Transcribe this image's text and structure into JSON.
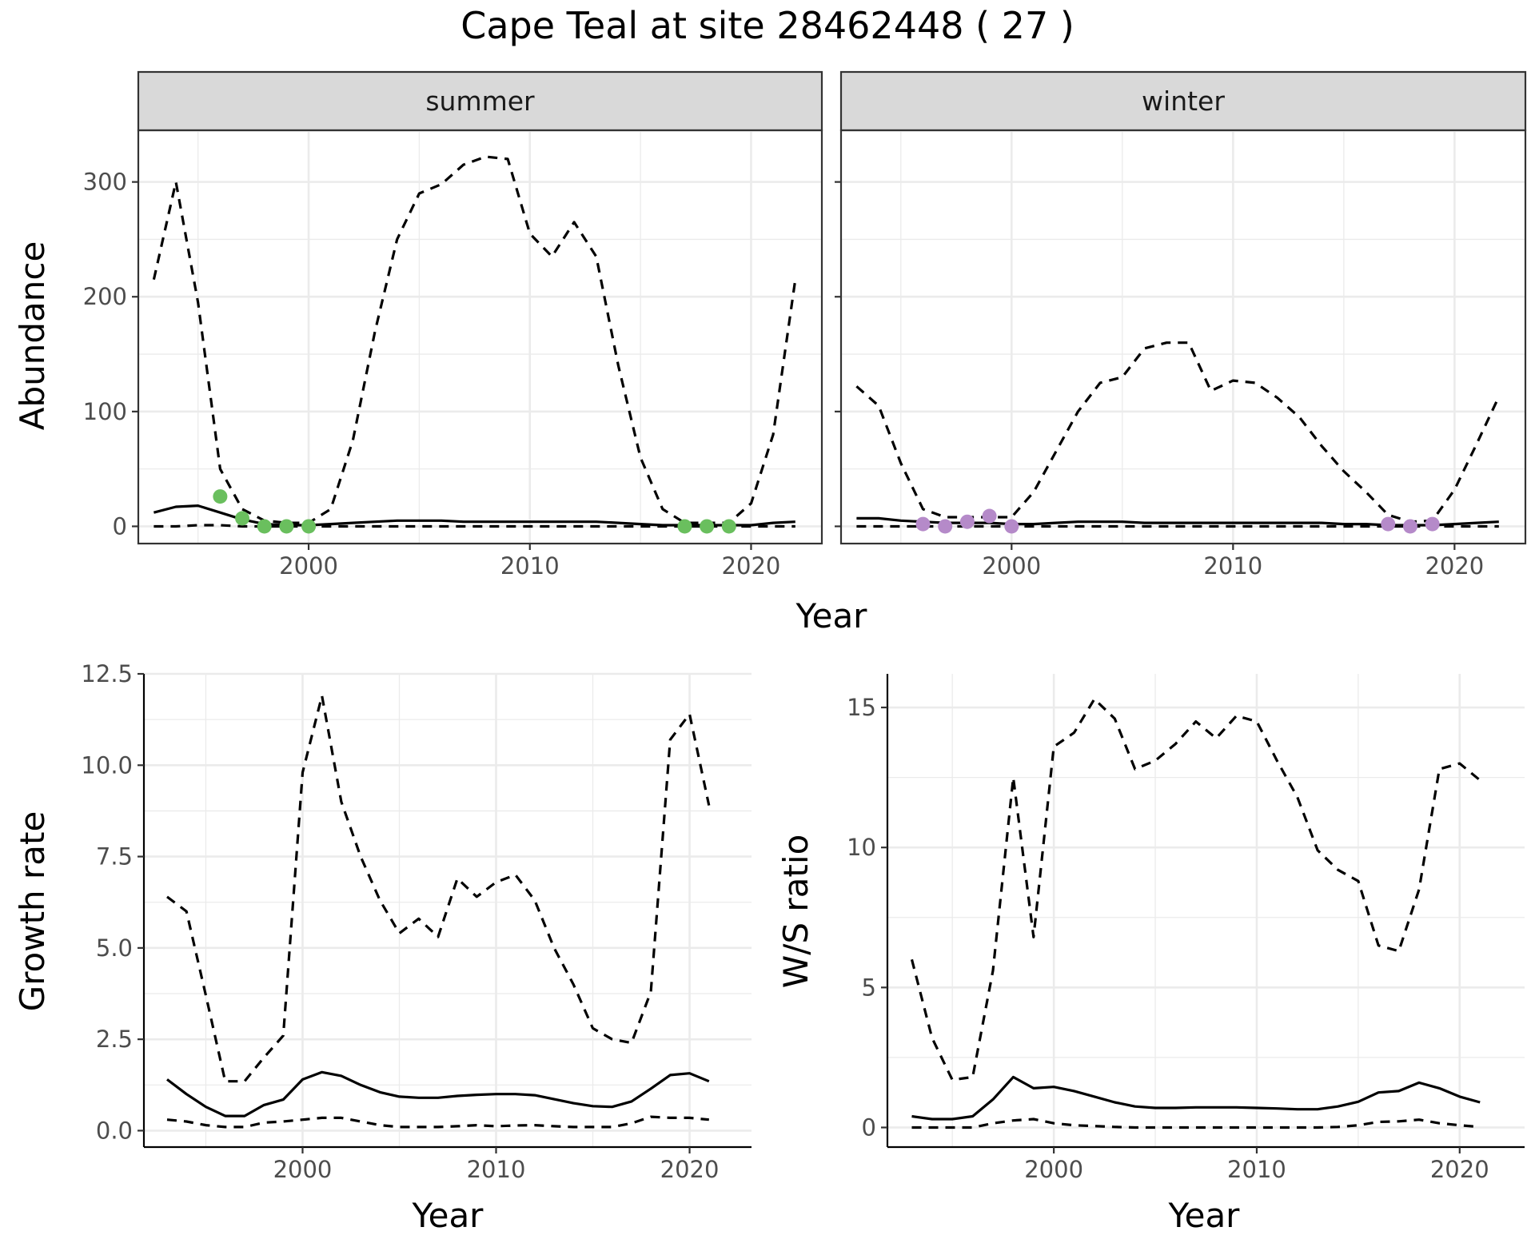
{
  "title": "Cape Teal at site 28462448 ( 27 )",
  "colors": {
    "summer_points": "#6abf5e",
    "winter_points": "#b58ac9",
    "lines": "#000000",
    "strip": "#d9d9d9"
  },
  "chart_data": [
    {
      "id": "abundance",
      "type": "line",
      "xlabel": "Year",
      "ylabel": "Abundance",
      "xlim": [
        1992.3,
        2023.2
      ],
      "ylim": [
        -15,
        345
      ],
      "x_ticks": [
        2000,
        2010,
        2020
      ],
      "y_ticks": [
        0,
        100,
        200,
        300
      ],
      "facets": [
        {
          "label": "summer",
          "point_color": "#6abf5e",
          "estimate": {
            "x": [
              1993,
              1994,
              1995,
              1996,
              1997,
              1998,
              1999,
              2000,
              2001,
              2002,
              2003,
              2004,
              2005,
              2006,
              2007,
              2008,
              2009,
              2010,
              2011,
              2012,
              2013,
              2014,
              2015,
              2016,
              2017,
              2018,
              2019,
              2020,
              2021,
              2022
            ],
            "y": [
              12,
              17,
              18,
              12,
              6,
              2,
              1,
              1,
              2,
              3,
              4,
              5,
              5,
              5,
              4,
              4,
              4,
              4,
              4,
              4,
              4,
              3,
              2,
              1,
              1,
              1,
              1,
              1,
              3,
              4
            ]
          },
          "upper": {
            "x": [
              1993,
              1994,
              1995,
              1996,
              1997,
              1998,
              1999,
              2000,
              2001,
              2002,
              2003,
              2004,
              2005,
              2006,
              2007,
              2008,
              2009,
              2010,
              2011,
              2012,
              2013,
              2014,
              2015,
              2016,
              2017,
              2018,
              2019,
              2020,
              2021,
              2022
            ],
            "y": [
              215,
              300,
              195,
              50,
              15,
              5,
              3,
              3,
              15,
              75,
              170,
              250,
              290,
              298,
              315,
              322,
              320,
              255,
              235,
              265,
              235,
              140,
              60,
              15,
              3,
              3,
              3,
              20,
              80,
              215
            ]
          },
          "lower": {
            "x": [
              1993,
              1994,
              1995,
              1996,
              1997,
              1998,
              1999,
              2000,
              2001,
              2002,
              2003,
              2004,
              2005,
              2006,
              2007,
              2008,
              2009,
              2010,
              2011,
              2012,
              2013,
              2014,
              2015,
              2016,
              2017,
              2018,
              2019,
              2020,
              2021,
              2022
            ],
            "y": [
              0,
              0,
              1,
              1,
              0,
              0,
              0,
              0,
              0,
              0,
              0,
              0,
              0,
              0,
              0,
              0,
              0,
              0,
              0,
              0,
              0,
              0,
              0,
              0,
              0,
              0,
              0,
              0,
              0,
              0
            ]
          },
          "points": {
            "x": [
              1996,
              1997,
              1998,
              1999,
              2000,
              2017,
              2018,
              2019
            ],
            "y": [
              26,
              7,
              0,
              0,
              0,
              0,
              0,
              0
            ]
          }
        },
        {
          "label": "winter",
          "point_color": "#b58ac9",
          "estimate": {
            "x": [
              1993,
              1994,
              1995,
              1996,
              1997,
              1998,
              1999,
              2000,
              2001,
              2002,
              2003,
              2004,
              2005,
              2006,
              2007,
              2008,
              2009,
              2010,
              2011,
              2012,
              2013,
              2014,
              2015,
              2016,
              2017,
              2018,
              2019,
              2020,
              2021,
              2022
            ],
            "y": [
              7,
              7,
              5,
              4,
              3,
              3,
              3,
              2,
              2,
              3,
              4,
              4,
              4,
              3,
              3,
              3,
              3,
              3,
              3,
              3,
              3,
              3,
              2,
              2,
              1,
              1,
              1,
              2,
              3,
              4
            ]
          },
          "upper": {
            "x": [
              1993,
              1994,
              1995,
              1996,
              1997,
              1998,
              1999,
              2000,
              2001,
              2002,
              2003,
              2004,
              2005,
              2006,
              2007,
              2008,
              2009,
              2010,
              2011,
              2012,
              2013,
              2014,
              2015,
              2016,
              2017,
              2018,
              2019,
              2020,
              2021,
              2022
            ],
            "y": [
              122,
              105,
              55,
              15,
              8,
              8,
              8,
              8,
              30,
              65,
              100,
              125,
              130,
              155,
              160,
              160,
              118,
              127,
              125,
              112,
              95,
              70,
              48,
              30,
              10,
              4,
              5,
              32,
              72,
              113
            ]
          },
          "lower": {
            "x": [
              1993,
              1994,
              1995,
              1996,
              1997,
              1998,
              1999,
              2000,
              2001,
              2002,
              2003,
              2004,
              2005,
              2006,
              2007,
              2008,
              2009,
              2010,
              2011,
              2012,
              2013,
              2014,
              2015,
              2016,
              2017,
              2018,
              2019,
              2020,
              2021,
              2022
            ],
            "y": [
              0,
              0,
              0,
              0,
              0,
              0,
              0,
              0,
              0,
              0,
              0,
              0,
              0,
              0,
              0,
              0,
              0,
              0,
              0,
              0,
              0,
              0,
              0,
              0,
              0,
              0,
              0,
              0,
              0,
              0
            ]
          },
          "points": {
            "x": [
              1996,
              1997,
              1998,
              1999,
              2000,
              2017,
              2018,
              2019
            ],
            "y": [
              2,
              0,
              4,
              9,
              0,
              2,
              0,
              2
            ]
          }
        }
      ]
    },
    {
      "id": "growth",
      "type": "line",
      "xlabel": "Year",
      "ylabel": "Growth rate",
      "xlim": [
        1991.8,
        2023.2
      ],
      "ylim": [
        -0.45,
        12.5
      ],
      "x_ticks": [
        2000,
        2010,
        2020
      ],
      "y_ticks": [
        0.0,
        2.5,
        5.0,
        7.5,
        10.0,
        12.5
      ],
      "y_tick_labels": [
        "0.0",
        "2.5",
        "5.0",
        "7.5",
        "10.0",
        "12.5"
      ],
      "estimate": {
        "x": [
          1993,
          1994,
          1995,
          1996,
          1997,
          1998,
          1999,
          2000,
          2001,
          2002,
          2003,
          2004,
          2005,
          2006,
          2007,
          2008,
          2009,
          2010,
          2011,
          2012,
          2013,
          2014,
          2015,
          2016,
          2017,
          2018,
          2019,
          2020,
          2021
        ],
        "y": [
          1.4,
          1.0,
          0.65,
          0.4,
          0.4,
          0.7,
          0.85,
          1.4,
          1.6,
          1.5,
          1.25,
          1.05,
          0.93,
          0.9,
          0.9,
          0.95,
          0.98,
          1.0,
          1.0,
          0.97,
          0.86,
          0.75,
          0.67,
          0.65,
          0.8,
          1.15,
          1.52,
          1.57,
          1.35
        ]
      },
      "upper": {
        "x": [
          1993,
          1994,
          1995,
          1996,
          1997,
          1998,
          1999,
          2000,
          2001,
          2002,
          2003,
          2004,
          2005,
          2006,
          2007,
          2008,
          2009,
          2010,
          2011,
          2012,
          2013,
          2014,
          2015,
          2016,
          2017,
          2018,
          2019,
          2020,
          2021
        ],
        "y": [
          6.4,
          6.0,
          3.7,
          1.35,
          1.35,
          2.0,
          2.6,
          9.8,
          11.9,
          9.0,
          7.5,
          6.3,
          5.4,
          5.8,
          5.3,
          6.9,
          6.4,
          6.8,
          7.0,
          6.3,
          5.0,
          4.0,
          2.8,
          2.5,
          2.4,
          3.8,
          10.7,
          11.4,
          8.9
        ]
      },
      "lower": {
        "x": [
          1993,
          1994,
          1995,
          1996,
          1997,
          1998,
          1999,
          2000,
          2001,
          2002,
          2003,
          2004,
          2005,
          2006,
          2007,
          2008,
          2009,
          2010,
          2011,
          2012,
          2013,
          2014,
          2015,
          2016,
          2017,
          2018,
          2019,
          2020,
          2021
        ],
        "y": [
          0.3,
          0.25,
          0.15,
          0.1,
          0.1,
          0.22,
          0.25,
          0.3,
          0.35,
          0.35,
          0.25,
          0.15,
          0.1,
          0.1,
          0.1,
          0.12,
          0.15,
          0.12,
          0.14,
          0.15,
          0.12,
          0.1,
          0.1,
          0.1,
          0.2,
          0.38,
          0.35,
          0.35,
          0.3
        ]
      }
    },
    {
      "id": "ratio",
      "type": "line",
      "xlabel": "Year",
      "ylabel": "W/S ratio",
      "xlim": [
        1991.8,
        2023.2
      ],
      "ylim": [
        -0.7,
        16.2
      ],
      "x_ticks": [
        2000,
        2010,
        2020
      ],
      "y_ticks": [
        0,
        5,
        10,
        15
      ],
      "estimate": {
        "x": [
          1993,
          1994,
          1995,
          1996,
          1997,
          1998,
          1999,
          2000,
          2001,
          2002,
          2003,
          2004,
          2005,
          2006,
          2007,
          2008,
          2009,
          2010,
          2011,
          2012,
          2013,
          2014,
          2015,
          2016,
          2017,
          2018,
          2019,
          2020,
          2021
        ],
        "y": [
          0.4,
          0.3,
          0.3,
          0.4,
          1.0,
          1.8,
          1.4,
          1.45,
          1.3,
          1.1,
          0.9,
          0.75,
          0.7,
          0.7,
          0.72,
          0.72,
          0.72,
          0.7,
          0.68,
          0.65,
          0.65,
          0.75,
          0.92,
          1.25,
          1.3,
          1.6,
          1.4,
          1.1,
          0.9
        ]
      },
      "upper": {
        "x": [
          1993,
          1994,
          1995,
          1996,
          1997,
          1998,
          1999,
          2000,
          2001,
          2002,
          2003,
          2004,
          2005,
          2006,
          2007,
          2008,
          2009,
          2010,
          2011,
          2012,
          2013,
          2014,
          2015,
          2016,
          2017,
          2018,
          2019,
          2020,
          2021
        ],
        "y": [
          6.0,
          3.2,
          1.7,
          1.8,
          5.6,
          12.5,
          6.8,
          13.6,
          14.1,
          15.3,
          14.6,
          12.8,
          13.1,
          13.7,
          14.5,
          13.9,
          14.7,
          14.5,
          13.1,
          11.8,
          9.9,
          9.2,
          8.8,
          6.5,
          6.3,
          8.5,
          12.8,
          13.0,
          12.4
        ]
      },
      "lower": {
        "x": [
          1993,
          1994,
          1995,
          1996,
          1997,
          1998,
          1999,
          2000,
          2001,
          2002,
          2003,
          2004,
          2005,
          2006,
          2007,
          2008,
          2009,
          2010,
          2011,
          2012,
          2013,
          2014,
          2015,
          2016,
          2017,
          2018,
          2019,
          2020,
          2021
        ],
        "y": [
          0.0,
          0.0,
          0.0,
          0.0,
          0.15,
          0.25,
          0.3,
          0.15,
          0.08,
          0.05,
          0.02,
          0.0,
          0.0,
          0.0,
          0.0,
          0.0,
          0.0,
          0.0,
          0.0,
          0.0,
          0.0,
          0.02,
          0.08,
          0.2,
          0.22,
          0.28,
          0.15,
          0.08,
          0.02
        ]
      }
    }
  ]
}
